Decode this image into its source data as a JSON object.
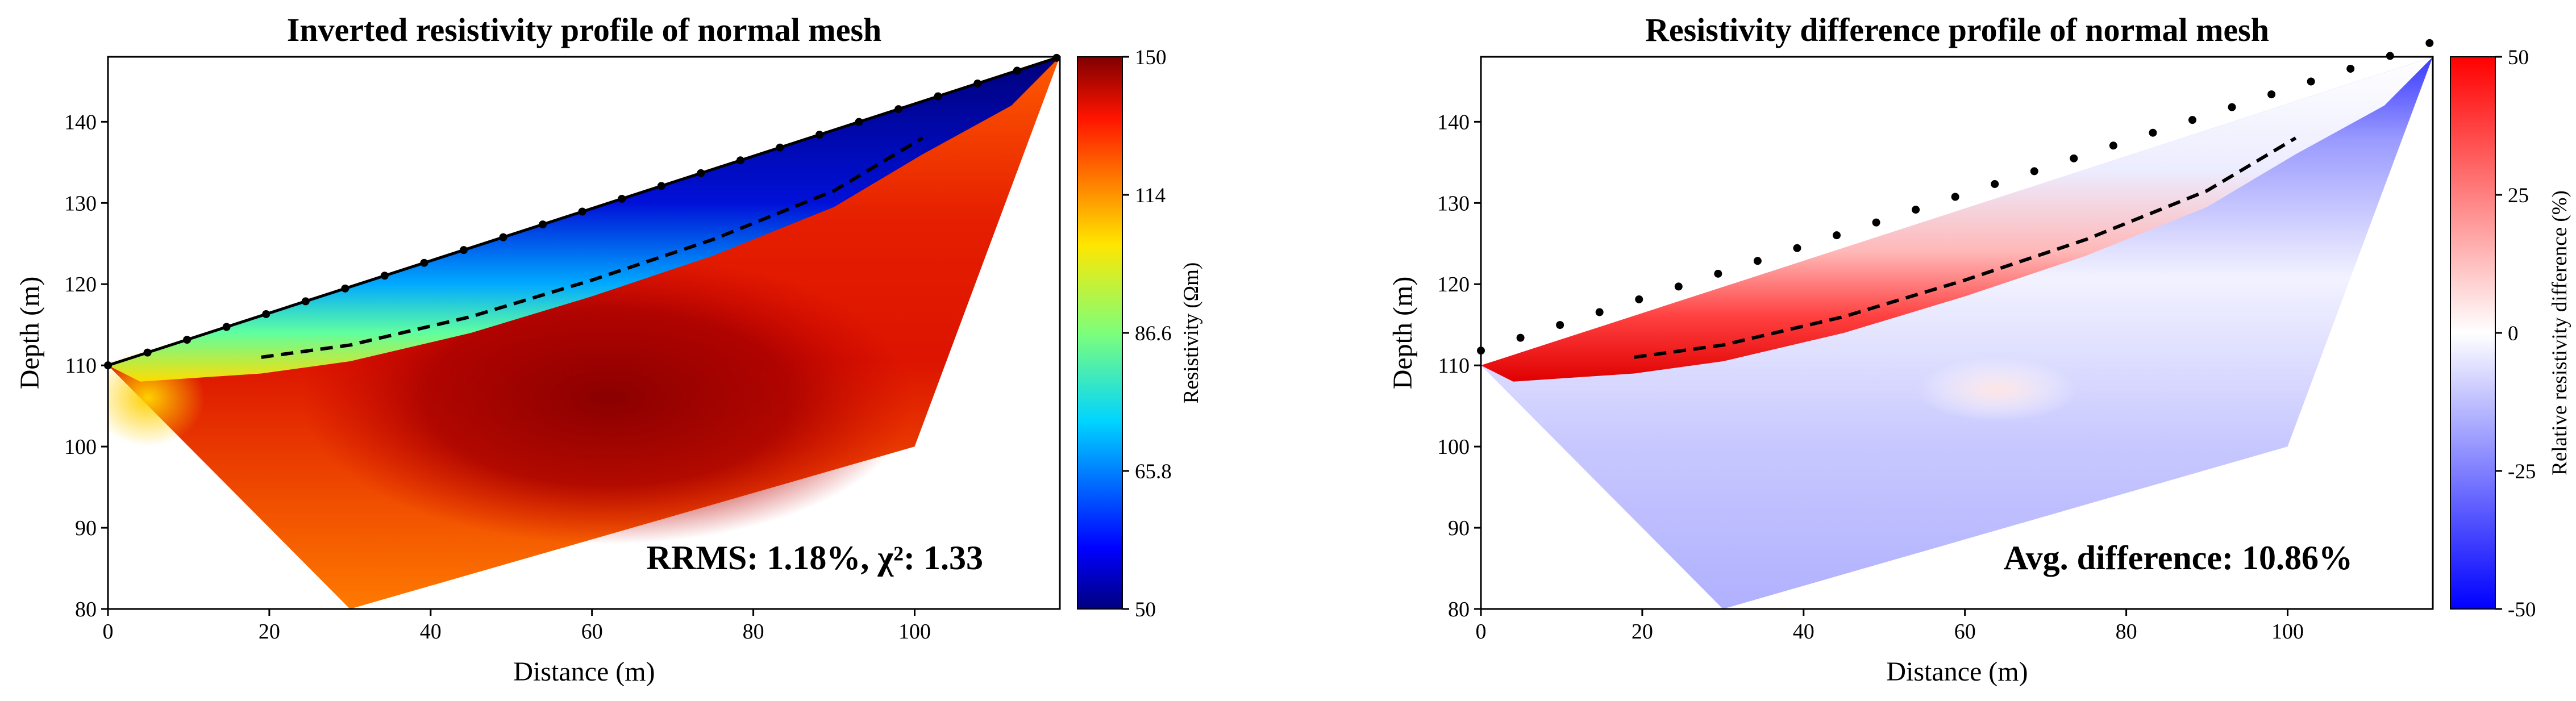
{
  "chart_data": [
    {
      "type": "heatmap",
      "title": "Inverted resistivity profile of normal mesh",
      "xlabel": "Distance (m)",
      "ylabel": "Depth (m)",
      "xlim": [
        0,
        118
      ],
      "ylim": [
        80,
        148
      ],
      "xticks": [
        "0",
        "20",
        "40",
        "60",
        "80",
        "100"
      ],
      "yticks": [
        "80",
        "90",
        "100",
        "110",
        "120",
        "130",
        "140"
      ],
      "annotation": "RRMS: 1.18%, χ²: 1.33",
      "colorbar": {
        "label": "Resistivity (Ωm)",
        "ticks": [
          "50",
          "65.8",
          "86.6",
          "114",
          "150"
        ],
        "colormap": "jet",
        "range": [
          50,
          150
        ]
      },
      "electrodes": {
        "x_start": 0,
        "x_end": 118,
        "spacing": 4.9,
        "count": 25
      },
      "boundary_line": {
        "style": "dashed",
        "x": [
          19,
          30,
          45,
          60,
          75,
          90,
          101
        ],
        "y": [
          111,
          112.5,
          116,
          120.5,
          125.5,
          131.5,
          138
        ]
      }
    },
    {
      "type": "heatmap",
      "title": "Resistivity difference profile of normal mesh",
      "xlabel": "Distance (m)",
      "ylabel": "Depth (m)",
      "xlim": [
        0,
        118
      ],
      "ylim": [
        80,
        148
      ],
      "xticks": [
        "0",
        "20",
        "40",
        "60",
        "80",
        "100"
      ],
      "yticks": [
        "80",
        "90",
        "100",
        "110",
        "120",
        "130",
        "140"
      ],
      "annotation": "Avg. difference: 10.86%",
      "colorbar": {
        "label": "Relative resistivity difference (%)",
        "ticks": [
          "50",
          "25",
          "0",
          "-25",
          "-50"
        ],
        "colormap": "bwr",
        "range": [
          -50,
          50
        ]
      },
      "electrodes": {
        "x_start": 0,
        "x_end": 118,
        "spacing": 4.9,
        "count": 25
      },
      "boundary_line": {
        "style": "dashed",
        "x": [
          19,
          30,
          45,
          60,
          75,
          90,
          101
        ],
        "y": [
          111,
          112.5,
          116,
          120.5,
          125.5,
          131.5,
          138
        ]
      }
    }
  ]
}
